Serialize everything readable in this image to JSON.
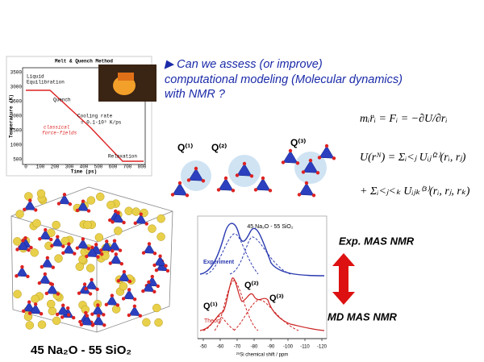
{
  "headline": [
    "▶ Can we assess (or improve)",
    "computational modeling (Molecular dynamics)",
    "with NMR ?"
  ],
  "melt_quench": {
    "title": "Melt & Quench Method",
    "liquid": [
      "Liquid",
      "Equilibration"
    ],
    "quench": "Quench",
    "cooling": [
      "Cooling rate",
      "= 0.1-10³ K/ps"
    ],
    "force_fields": [
      "classical",
      "force-fields"
    ],
    "relaxation": "Relaxation",
    "y_axis": "Temperature (K)",
    "x_axis": "Time (ps)",
    "x_ticks": [
      "0",
      "100",
      "200",
      "300",
      "400",
      "500",
      "600",
      "700",
      "800"
    ],
    "y_ticks": [
      "3500",
      "3000",
      "2500",
      "2000",
      "1500",
      "1000",
      "500"
    ]
  },
  "equations": [
    "mᵢr̈ᵢ = Fᵢ = −∂U/∂rᵢ",
    "U(rᴺ) = Σᵢ<ⱼ Uᵢⱼ⁽²⁾(rᵢ, rⱼ)",
    "+ Σᵢ<ⱼ<ₖ Uᵢⱼₖ⁽³⁾(rᵢ, rⱼ, rₖ)"
  ],
  "q_units": [
    "Q⁽¹⁾",
    "Q⁽²⁾",
    "Q⁽³⁾"
  ],
  "glass_caption": "45 Na₂O - 55 SiO₂",
  "nmr": {
    "title": "45 Na₂O - 55 SiO₂",
    "experiment": "Experiment",
    "theory": "Theory",
    "q_labels": [
      "Q⁽¹⁾",
      "Q⁽²⁾",
      "Q⁽³⁾"
    ],
    "x_ticks": [
      "-50",
      "-60",
      "-70",
      "-80",
      "-90",
      "-100",
      "-110",
      "-120"
    ],
    "x_axis": "²⁹Si chemical shift / ppm",
    "exp_label": "Exp. MAS NMR",
    "md_label": "MD MAS NMR"
  }
}
